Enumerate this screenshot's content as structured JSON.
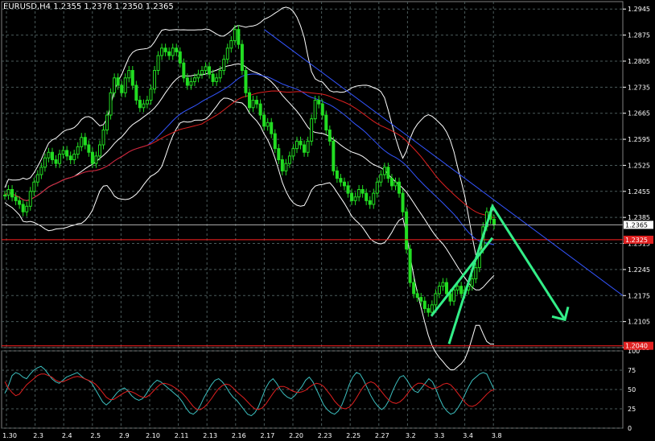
{
  "header": {
    "title": "EURUSD,H4  1.2355 1.2378 1.2350 1.2365"
  },
  "chart_data": {
    "type": "candlestick",
    "symbol": "EURUSD",
    "timeframe": "H4",
    "ohlc": {
      "open": 1.2355,
      "high": 1.2378,
      "low": 1.235,
      "close": 1.2365
    },
    "price_axis": {
      "ylim": [
        1.2035,
        1.2965
      ],
      "ticks": [
        "1.2945",
        "1.2875",
        "1.2805",
        "1.2735",
        "1.2665",
        "1.2595",
        "1.2525",
        "1.2455",
        "1.2385",
        "1.2315",
        "1.2245",
        "1.2175",
        "1.2105",
        "1.2035"
      ],
      "current_price_label": "1.2365",
      "level_labels": [
        "1.2325",
        "1.2040"
      ]
    },
    "x_ticks": [
      "1.30",
      "2.3",
      "2.4",
      "2.5",
      "2.9",
      "2.10",
      "2.11",
      "2.13",
      "2.16",
      "2.17",
      "2.20",
      "2.23",
      "2.25",
      "2.27",
      "3.2",
      "3.3",
      "3.4",
      "3.8"
    ],
    "levels": [
      {
        "price": 1.2325,
        "color": "#ff2020"
      },
      {
        "price": 1.204,
        "color": "#ff2020"
      }
    ],
    "closes": [
      1.2445,
      1.246,
      1.244,
      1.243,
      1.242,
      1.24,
      1.2415,
      1.2455,
      1.248,
      1.25,
      1.252,
      1.2545,
      1.256,
      1.254,
      1.253,
      1.2555,
      1.2565,
      1.255,
      1.254,
      1.2555,
      1.2575,
      1.26,
      1.258,
      1.256,
      1.253,
      1.255,
      1.258,
      1.262,
      1.266,
      1.272,
      1.276,
      1.274,
      1.272,
      1.276,
      1.278,
      1.274,
      1.27,
      1.268,
      1.269,
      1.27,
      1.273,
      1.278,
      1.282,
      1.284,
      1.283,
      1.282,
      1.284,
      1.283,
      1.28,
      1.276,
      1.274,
      1.275,
      1.276,
      1.277,
      1.278,
      1.279,
      1.277,
      1.275,
      1.276,
      1.278,
      1.281,
      1.284,
      1.286,
      1.289,
      1.285,
      1.278,
      1.272,
      1.268,
      1.27,
      1.269,
      1.266,
      1.263,
      1.264,
      1.261,
      1.257,
      1.254,
      1.251,
      1.253,
      1.255,
      1.257,
      1.259,
      1.258,
      1.256,
      1.259,
      1.265,
      1.27,
      1.269,
      1.266,
      1.262,
      1.259,
      1.251,
      1.249,
      1.248,
      1.247,
      1.245,
      1.243,
      1.244,
      1.246,
      1.245,
      1.243,
      1.242,
      1.245,
      1.248,
      1.25,
      1.252,
      1.249,
      1.247,
      1.248,
      1.245,
      1.24,
      1.23,
      1.221,
      1.218,
      1.217,
      1.216,
      1.214,
      1.213,
      1.215,
      1.218,
      1.22,
      1.221,
      1.218,
      1.216,
      1.219,
      1.22,
      1.218,
      1.219,
      1.22,
      1.222,
      1.225,
      1.23,
      1.236,
      1.24,
      1.238,
      1.2365
    ],
    "trendline": {
      "from": [
        "2.17",
        1.289
      ],
      "to": [
        "3.8+",
        1.2175
      ],
      "color": "#3355ff"
    },
    "pattern": {
      "points": [
        1.2045,
        1.2415,
        1.211
      ],
      "color": "#33ee88"
    },
    "oscillator": {
      "ylim": [
        0,
        100
      ],
      "ticks": [
        "100",
        "75",
        "50",
        "25",
        "0"
      ],
      "main_color": "#3cc0c0",
      "signal_color": "#e02020",
      "main": [
        45,
        55,
        68,
        72,
        70,
        66,
        64,
        70,
        75,
        78,
        80,
        76,
        70,
        64,
        60,
        58,
        62,
        66,
        68,
        70,
        72,
        68,
        64,
        62,
        58,
        50,
        42,
        34,
        30,
        34,
        40,
        46,
        50,
        52,
        48,
        42,
        38,
        36,
        38,
        44,
        52,
        58,
        62,
        60,
        56,
        52,
        48,
        44,
        40,
        34,
        26,
        20,
        18,
        22,
        30,
        40,
        48,
        56,
        62,
        64,
        60,
        54,
        46,
        40,
        36,
        30,
        24,
        18,
        16,
        20,
        28,
        40,
        52,
        60,
        64,
        58,
        50,
        44,
        40,
        38,
        42,
        48,
        54,
        62,
        66,
        60,
        50,
        40,
        30,
        24,
        20,
        18,
        22,
        30,
        42,
        56,
        66,
        72,
        70,
        62,
        52,
        42,
        34,
        28,
        24,
        28,
        36,
        48,
        58,
        66,
        68,
        62,
        54,
        48,
        46,
        52,
        58,
        64,
        60,
        50,
        38,
        28,
        22,
        18,
        20,
        26,
        34,
        44,
        54,
        62,
        66,
        70,
        72,
        70,
        60,
        50
      ],
      "signal": [
        60,
        52,
        46,
        42,
        44,
        50,
        56,
        60,
        64,
        68,
        70,
        70,
        68,
        66,
        62,
        60,
        60,
        62,
        64,
        66,
        67,
        66,
        64,
        62,
        60,
        57,
        52,
        46,
        40,
        37,
        37,
        40,
        43,
        46,
        48,
        47,
        45,
        42,
        40,
        40,
        43,
        48,
        53,
        57,
        58,
        57,
        55,
        52,
        49,
        45,
        40,
        34,
        28,
        24,
        24,
        27,
        32,
        38,
        45,
        51,
        55,
        57,
        56,
        52,
        47,
        43,
        39,
        34,
        29,
        25,
        24,
        26,
        31,
        38,
        45,
        51,
        54,
        54,
        52,
        49,
        47,
        46,
        47,
        49,
        53,
        56,
        58,
        57,
        54,
        48,
        42,
        35,
        30,
        26,
        25,
        27,
        32,
        39,
        47,
        54,
        58,
        60,
        58,
        53,
        47,
        41,
        36,
        33,
        32,
        34,
        38,
        44,
        50,
        55,
        58,
        58,
        56,
        53,
        51,
        52,
        54,
        57,
        58,
        56,
        51,
        45,
        39,
        33,
        29,
        28,
        30,
        34,
        39,
        44,
        48,
        50
      ]
    }
  }
}
